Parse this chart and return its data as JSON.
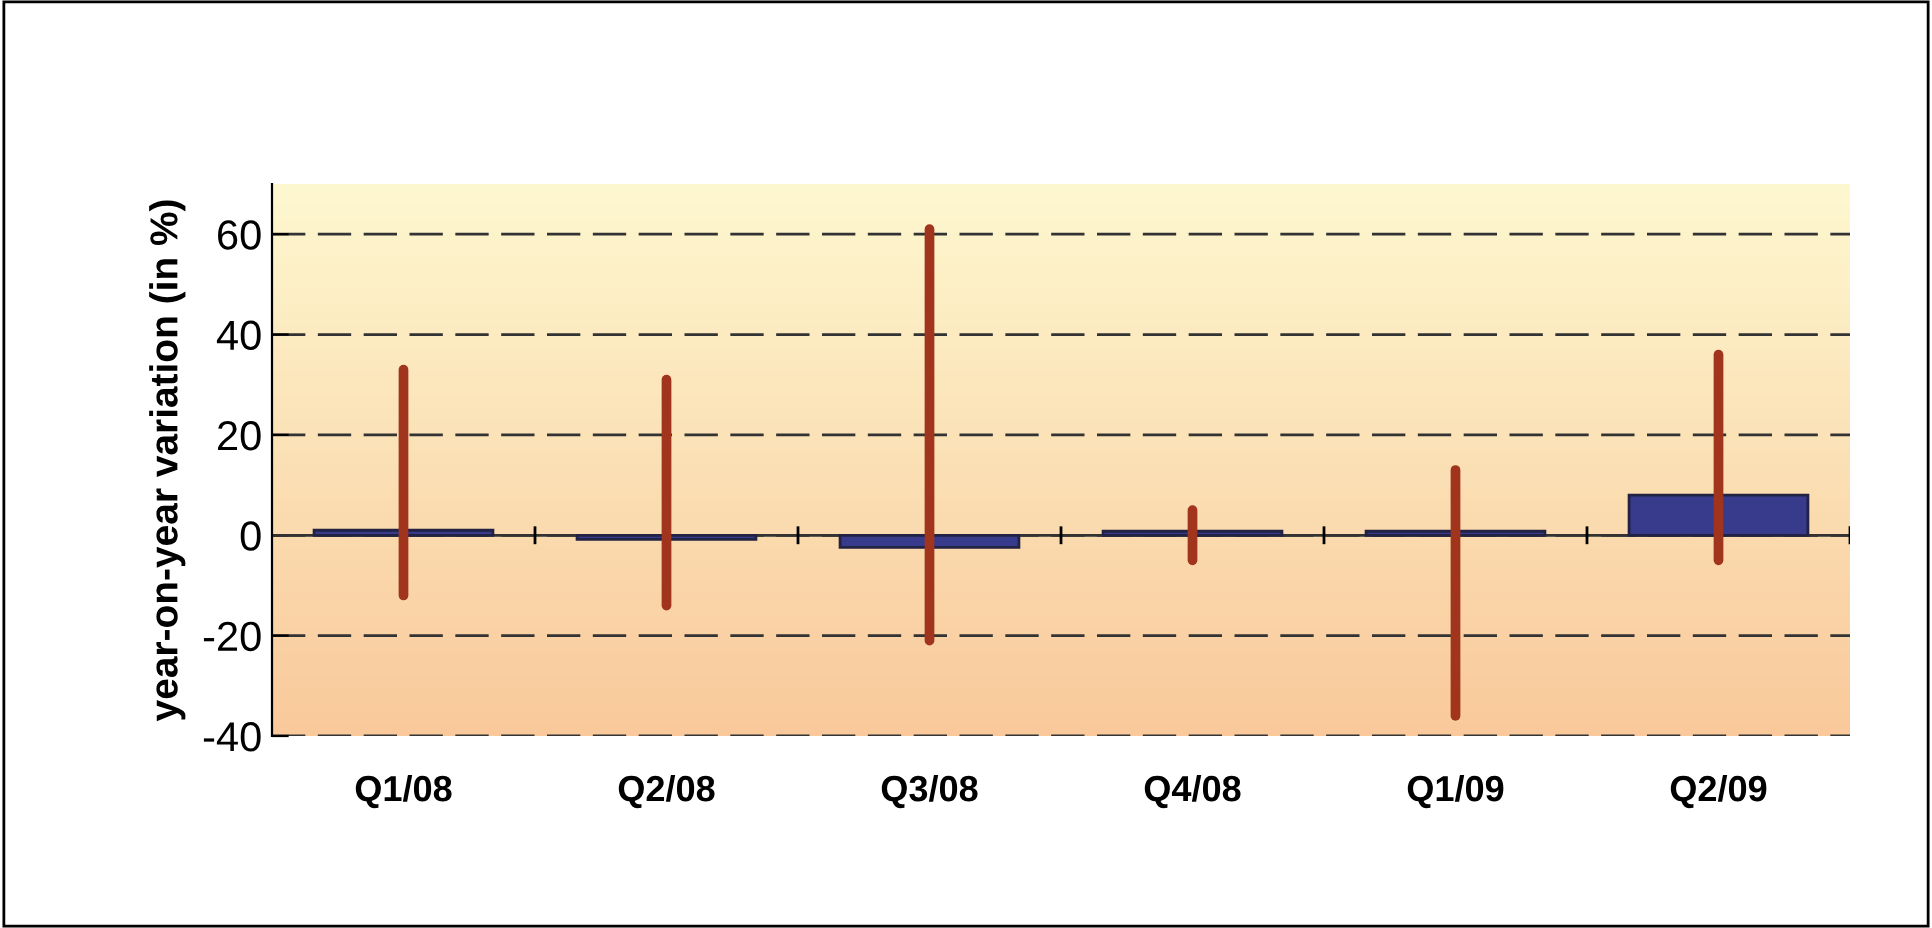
{
  "chart_data": {
    "type": "bar",
    "ylabel": "year-on-year variation (in %)",
    "categories": [
      "Q1/08",
      "Q2/08",
      "Q3/08",
      "Q4/08",
      "Q1/09",
      "Q2/09"
    ],
    "series": [
      {
        "color": "#383a8c",
        "values": [
          1,
          -0.8,
          -2.4,
          0.8,
          0.8,
          8
        ],
        "errors": [
          [
            -12,
            33
          ],
          [
            -14,
            31
          ],
          [
            -21,
            61
          ],
          [
            -5,
            5
          ],
          [
            -36,
            13
          ],
          [
            -5,
            36
          ]
        ]
      }
    ],
    "ylim": [
      -40,
      70
    ],
    "yticks": [
      -40,
      -20,
      0,
      20,
      40,
      60
    ],
    "grid": "y",
    "legend": false
  }
}
